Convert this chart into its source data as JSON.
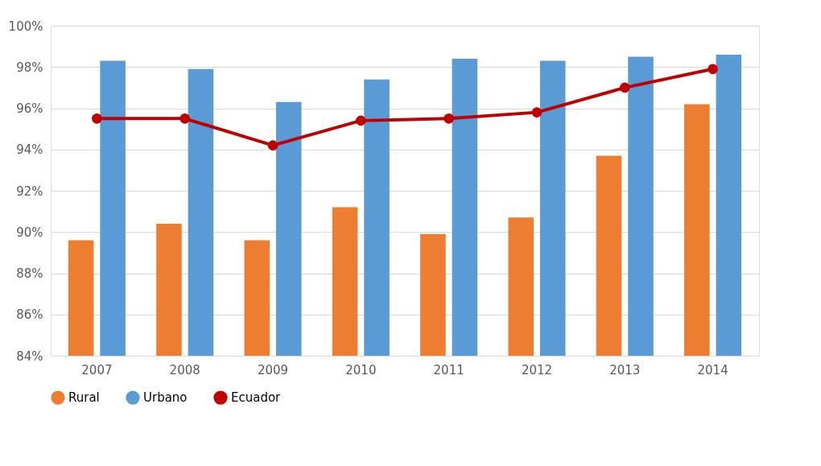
{
  "chart_data": {
    "type": "bar",
    "categories": [
      "2007",
      "2008",
      "2009",
      "2010",
      "2011",
      "2012",
      "2013",
      "2014"
    ],
    "series": [
      {
        "name": "Rural",
        "color": "#ed7d31",
        "values": [
          89.6,
          90.4,
          89.6,
          91.2,
          89.9,
          90.7,
          93.7,
          96.2
        ]
      },
      {
        "name": "Urbano",
        "color": "#5b9bd5",
        "values": [
          98.3,
          97.9,
          96.3,
          97.4,
          98.4,
          98.3,
          98.5,
          98.6
        ]
      },
      {
        "name": "Ecuador",
        "color": "#c00000",
        "type": "line",
        "marker": "circle",
        "values": [
          95.5,
          95.5,
          94.2,
          95.4,
          95.5,
          95.8,
          97.0,
          97.9
        ]
      }
    ],
    "ylim": [
      84,
      100
    ],
    "yticks": [
      {
        "value": 84,
        "label": "84%"
      },
      {
        "value": 86,
        "label": "86%"
      },
      {
        "value": 88,
        "label": "88%"
      },
      {
        "value": 90,
        "label": "90%"
      },
      {
        "value": 92,
        "label": "92%"
      },
      {
        "value": 94,
        "label": "94%"
      },
      {
        "value": 96,
        "label": "96%"
      },
      {
        "value": 98,
        "label": "98%"
      },
      {
        "value": 100,
        "label": "100%"
      }
    ],
    "grid": "y",
    "legend": "bottom"
  }
}
